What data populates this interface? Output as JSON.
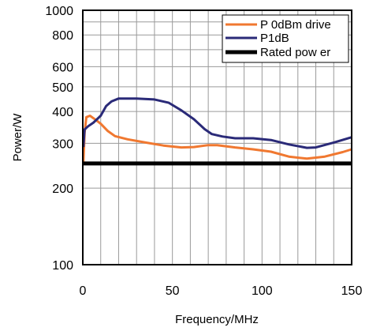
{
  "chart_data": {
    "type": "line",
    "title": "",
    "xlabel": "Frequency/MHz",
    "ylabel": "Power/W",
    "xlim": [
      0,
      150
    ],
    "ylim": [
      100,
      1000
    ],
    "yscale": "log",
    "grid": true,
    "legend_position": "top-right",
    "x_ticks": [
      0,
      50,
      100,
      150
    ],
    "x_tick_labels": [
      "0",
      "50",
      "100",
      "150"
    ],
    "y_ticks": [
      100,
      200,
      300,
      400,
      500,
      600,
      800,
      1000
    ],
    "y_tick_labels": [
      "100",
      "200",
      "300",
      "400",
      "500",
      "600",
      "800",
      "1000"
    ],
    "series": [
      {
        "name": "P 0dBm drive",
        "color": "#f07830",
        "x": [
          0.3,
          1,
          2,
          4,
          7,
          10,
          14,
          18,
          25,
          35,
          45,
          55,
          62,
          70,
          75,
          85,
          95,
          105,
          115,
          125,
          135,
          145,
          150
        ],
        "y": [
          250,
          330,
          380,
          385,
          372,
          358,
          335,
          320,
          311,
          302,
          294,
          289,
          290,
          295,
          295,
          289,
          284,
          278,
          266,
          261,
          266,
          277,
          284
        ]
      },
      {
        "name": "P1dB",
        "color": "#2a2a78",
        "x": [
          0.3,
          1,
          3,
          6,
          10,
          13,
          16,
          20,
          30,
          40,
          48,
          55,
          62,
          68,
          72,
          78,
          85,
          95,
          105,
          115,
          125,
          130,
          140,
          150
        ],
        "y": [
          290,
          340,
          350,
          362,
          385,
          420,
          438,
          450,
          450,
          446,
          433,
          404,
          373,
          341,
          326,
          319,
          314,
          314,
          309,
          297,
          288,
          289,
          302,
          317
        ]
      },
      {
        "name": "Rated pow er",
        "color": "#000000",
        "x": [
          0,
          150
        ],
        "y": [
          250,
          250
        ]
      }
    ]
  }
}
